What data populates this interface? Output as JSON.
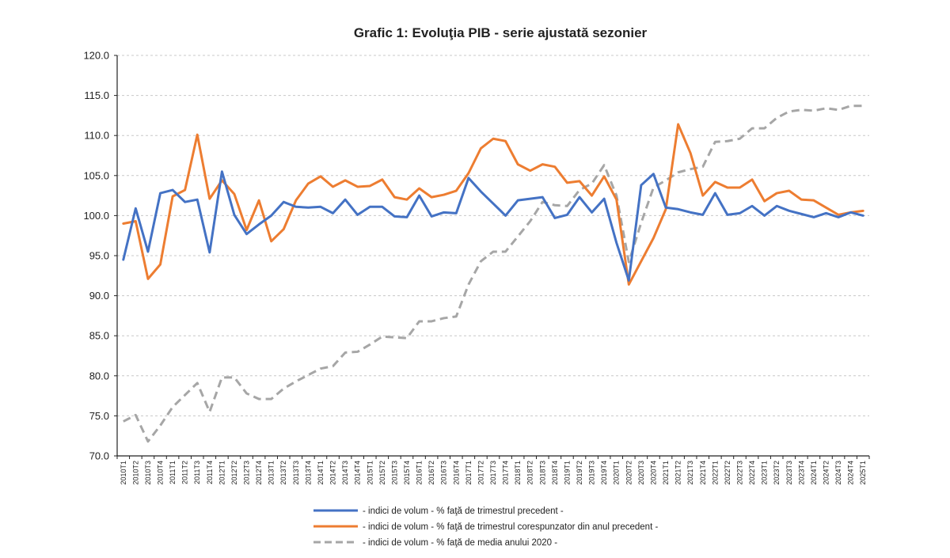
{
  "chart_data": {
    "type": "line",
    "title": "Grafic 1: Evoluţia PIB - serie ajustată sezonier",
    "ylim": [
      70,
      120
    ],
    "yticks": [
      70,
      75,
      80,
      85,
      90,
      95,
      100,
      105,
      110,
      115,
      120
    ],
    "ytick_labels": [
      "70.0",
      "75.0",
      "80.0",
      "85.0",
      "90.0",
      "95.0",
      "100.0",
      "105.0",
      "110.0",
      "115.0",
      "120.0"
    ],
    "grid": "horizontal dashed",
    "legend_position": "bottom",
    "categories": [
      "2010T1",
      "2010T2",
      "2010T3",
      "2010T4",
      "2011T1",
      "2011T2",
      "2011T3",
      "2011T4",
      "2012T1",
      "2012T2",
      "2012T3",
      "2012T4",
      "2013T1",
      "2013T2",
      "2013T3",
      "2013T4",
      "2014T1",
      "2014T2",
      "2014T3",
      "2014T4",
      "2015T1",
      "2015T2",
      "2015T3",
      "2015T4",
      "2016T1",
      "2016T2",
      "2016T3",
      "2016T4",
      "2017T1",
      "2017T2",
      "2017T3",
      "2017T4",
      "2018T1",
      "2018T2",
      "2018T3",
      "2018T4",
      "2019T1",
      "2019T2",
      "2019T3",
      "2019T4",
      "2020T1",
      "2020T2",
      "2020T3",
      "2020T4",
      "2021T1",
      "2021T2",
      "2021T3",
      "2021T4",
      "2022T1",
      "2022T2",
      "2022T3",
      "2022T4",
      "2023T1",
      "2023T2",
      "2023T3",
      "2023T4",
      "2024T1",
      "2024T2",
      "2024T3",
      "2024T4",
      "2025T1"
    ],
    "series": [
      {
        "name": "- indici de volum - % faţă de trimestrul precedent -",
        "color": "#4472C4",
        "dash": "solid",
        "values": [
          94.5,
          100.9,
          95.5,
          102.8,
          103.2,
          101.7,
          102.0,
          95.4,
          105.5,
          100.1,
          97.7,
          98.9,
          100.0,
          101.7,
          101.1,
          101.0,
          101.1,
          100.3,
          102.0,
          100.1,
          101.1,
          101.1,
          99.9,
          99.8,
          102.5,
          99.9,
          100.4,
          100.3,
          104.7,
          103.0,
          101.5,
          100.0,
          101.9,
          102.1,
          102.3,
          99.7,
          100.1,
          102.3,
          100.4,
          102.1,
          96.6,
          91.9,
          103.8,
          105.2,
          101.0,
          100.8,
          100.4,
          100.1,
          102.8,
          100.1,
          100.3,
          101.2,
          100.0,
          101.2,
          100.6,
          100.2,
          99.8,
          100.3,
          99.8,
          100.4,
          100.0
        ]
      },
      {
        "name": "- indici de volum - % faţă de trimestrul corespunzator din anul precedent -",
        "color": "#ED7D31",
        "dash": "solid",
        "values": [
          99.0,
          99.3,
          92.1,
          93.9,
          102.4,
          103.2,
          110.1,
          102.1,
          104.4,
          102.7,
          98.2,
          101.9,
          96.8,
          98.3,
          101.9,
          104.0,
          104.9,
          103.6,
          104.4,
          103.6,
          103.7,
          104.5,
          102.3,
          102.0,
          103.4,
          102.3,
          102.6,
          103.1,
          105.3,
          108.4,
          109.6,
          109.3,
          106.4,
          105.6,
          106.4,
          106.1,
          104.1,
          104.3,
          102.5,
          104.9,
          102.0,
          91.4,
          94.3,
          97.2,
          100.8,
          111.4,
          107.8,
          102.5,
          104.2,
          103.5,
          103.5,
          104.5,
          101.8,
          102.8,
          103.1,
          102.0,
          101.9,
          101.0,
          100.1,
          100.4,
          100.6
        ]
      },
      {
        "name": "- indici de volum - % faţă de media anului 2020 -",
        "color": "#A6A6A6",
        "dash": "dashed",
        "values": [
          74.3,
          75.1,
          71.8,
          73.8,
          76.1,
          77.6,
          79.1,
          75.5,
          79.8,
          79.8,
          77.8,
          77.1,
          77.1,
          78.4,
          79.3,
          80.1,
          80.9,
          81.2,
          82.9,
          83.0,
          83.9,
          84.9,
          84.8,
          84.7,
          86.8,
          86.8,
          87.2,
          87.4,
          91.4,
          94.3,
          95.5,
          95.5,
          97.4,
          99.3,
          101.7,
          101.3,
          101.2,
          103.2,
          104.0,
          106.3,
          102.5,
          94.2,
          99.1,
          103.5,
          104.4,
          105.4,
          105.8,
          106.1,
          109.2,
          109.3,
          109.6,
          110.9,
          110.9,
          112.2,
          113.0,
          113.2,
          113.1,
          113.4,
          113.2,
          113.7,
          113.7
        ]
      }
    ]
  }
}
